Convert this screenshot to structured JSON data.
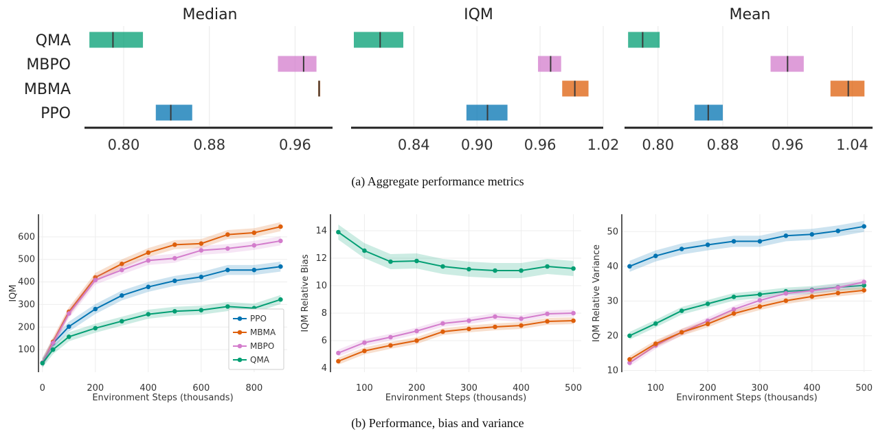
{
  "captions": {
    "a": "(a) Aggregate performance metrics",
    "b": "(b) Performance, bias and variance"
  },
  "methods": [
    "QMA",
    "MBPO",
    "MBMA",
    "PPO"
  ],
  "colors": {
    "PPO": "#0173b2",
    "MBMA": "#de5f0b",
    "MBPO": "#d37ccc",
    "QMA": "#029e73"
  },
  "chart_data": [
    {
      "type": "bar",
      "subtype": "interval",
      "title": "Median",
      "ticks": [
        0.8,
        0.88,
        0.96
      ],
      "tick_labels": [
        "0.80",
        "0.88",
        "0.96"
      ],
      "xlim": [
        0.766,
        0.995
      ],
      "intervals": [
        {
          "method": "QMA",
          "low": 0.768,
          "high": 0.818,
          "point": 0.79
        },
        {
          "method": "MBPO",
          "low": 0.944,
          "high": 0.98,
          "point": 0.968
        },
        {
          "method": "MBMA",
          "low": 0.9815,
          "high": 0.9835,
          "point": 0.9825
        },
        {
          "method": "PPO",
          "low": 0.83,
          "high": 0.864,
          "point": 0.844
        }
      ]
    },
    {
      "type": "bar",
      "subtype": "interval",
      "title": "IQM",
      "ticks": [
        0.84,
        0.9,
        0.96,
        1.02
      ],
      "tick_labels": [
        "0.84",
        "0.90",
        "0.96",
        "1.02"
      ],
      "xlim": [
        0.783,
        1.02
      ],
      "intervals": [
        {
          "method": "QMA",
          "low": 0.783,
          "high": 0.83,
          "point": 0.808
        },
        {
          "method": "MBPO",
          "low": 0.958,
          "high": 0.98,
          "point": 0.97
        },
        {
          "method": "MBMA",
          "low": 0.981,
          "high": 1.006,
          "point": 0.993
        },
        {
          "method": "PPO",
          "low": 0.89,
          "high": 0.929,
          "point": 0.91
        }
      ]
    },
    {
      "type": "bar",
      "subtype": "interval",
      "title": "Mean",
      "ticks": [
        0.8,
        0.88,
        0.96,
        1.04
      ],
      "tick_labels": [
        "0.80",
        "0.88",
        "0.96",
        "1.04"
      ],
      "xlim": [
        0.762,
        1.065
      ],
      "intervals": [
        {
          "method": "QMA",
          "low": 0.763,
          "high": 0.802,
          "point": 0.781
        },
        {
          "method": "MBPO",
          "low": 0.939,
          "high": 0.98,
          "point": 0.96
        },
        {
          "method": "MBMA",
          "low": 1.013,
          "high": 1.055,
          "point": 1.035
        },
        {
          "method": "PPO",
          "low": 0.845,
          "high": 0.88,
          "point": 0.862
        }
      ]
    },
    {
      "type": "line",
      "xlabel": "Environment Steps (thousands)",
      "ylabel": "IQM",
      "xlim": [
        -15,
        925
      ],
      "ylim": [
        0,
        700
      ],
      "xticks": [
        0,
        200,
        400,
        600,
        800
      ],
      "yticks": [
        100,
        200,
        300,
        400,
        500,
        600
      ],
      "legend": "center-right",
      "series": [
        {
          "name": "PPO",
          "x": [
            0,
            40,
            100,
            200,
            300,
            400,
            500,
            600,
            700,
            800,
            900
          ],
          "y": [
            42,
            128,
            202,
            280,
            340,
            378,
            405,
            422,
            453,
            453,
            468
          ],
          "band": 22
        },
        {
          "name": "MBMA",
          "x": [
            0,
            40,
            100,
            200,
            300,
            400,
            500,
            600,
            700,
            800,
            900
          ],
          "y": [
            42,
            135,
            268,
            420,
            480,
            530,
            565,
            570,
            610,
            618,
            645
          ],
          "band": 20
        },
        {
          "name": "MBPO",
          "x": [
            0,
            40,
            100,
            200,
            300,
            400,
            500,
            600,
            700,
            800,
            900
          ],
          "y": [
            42,
            130,
            260,
            408,
            453,
            495,
            505,
            540,
            548,
            562,
            582
          ],
          "band": 20
        },
        {
          "name": "QMA",
          "x": [
            0,
            40,
            100,
            200,
            300,
            400,
            500,
            600,
            700,
            800,
            900
          ],
          "y": [
            40,
            100,
            157,
            195,
            226,
            257,
            270,
            275,
            291,
            284,
            322
          ],
          "band": 20
        }
      ]
    },
    {
      "type": "line",
      "xlabel": "Environment Steps (thousands)",
      "ylabel": "IQM Relative Bias",
      "xlim": [
        35,
        515
      ],
      "ylim": [
        3.7,
        15.2
      ],
      "xticks": [
        100,
        200,
        300,
        400,
        500
      ],
      "yticks": [
        4,
        6,
        8,
        10,
        12,
        14
      ],
      "series": [
        {
          "name": "QMA",
          "x": [
            50,
            100,
            150,
            200,
            250,
            300,
            350,
            400,
            450,
            500
          ],
          "y": [
            13.9,
            12.55,
            11.75,
            11.8,
            11.4,
            11.2,
            11.1,
            11.1,
            11.4,
            11.25
          ],
          "band": 0.55
        },
        {
          "name": "MBPO",
          "x": [
            50,
            100,
            150,
            200,
            250,
            300,
            350,
            400,
            450,
            500
          ],
          "y": [
            5.1,
            5.85,
            6.25,
            6.7,
            7.25,
            7.45,
            7.75,
            7.6,
            7.95,
            8.0
          ],
          "band": 0.25
        },
        {
          "name": "MBMA",
          "x": [
            50,
            100,
            150,
            200,
            250,
            300,
            350,
            400,
            450,
            500
          ],
          "y": [
            4.5,
            5.25,
            5.65,
            6.0,
            6.65,
            6.85,
            7.0,
            7.1,
            7.4,
            7.45
          ],
          "band": 0.25
        }
      ]
    },
    {
      "type": "line",
      "xlabel": "Environment Steps (thousands)",
      "ylabel": "IQM Relative Variance",
      "xlim": [
        35,
        515
      ],
      "ylim": [
        9.5,
        55
      ],
      "xticks": [
        100,
        200,
        300,
        400,
        500
      ],
      "yticks": [
        10,
        20,
        30,
        40,
        50
      ],
      "series": [
        {
          "name": "PPO",
          "x": [
            50,
            100,
            150,
            200,
            250,
            300,
            350,
            400,
            450,
            500
          ],
          "y": [
            40.0,
            43.0,
            45.0,
            46.2,
            47.2,
            47.2,
            48.8,
            49.2,
            50.2,
            51.5
          ],
          "band": 1.6
        },
        {
          "name": "QMA",
          "x": [
            50,
            100,
            150,
            200,
            250,
            300,
            350,
            400,
            450,
            500
          ],
          "y": [
            20.0,
            23.5,
            27.2,
            29.2,
            31.2,
            31.9,
            32.8,
            33.2,
            34.0,
            34.5
          ],
          "band": 1.1
        },
        {
          "name": "MBPO",
          "x": [
            50,
            100,
            150,
            200,
            250,
            300,
            350,
            400,
            450,
            500
          ],
          "y": [
            12.2,
            17.2,
            21.0,
            24.3,
            27.6,
            30.2,
            32.2,
            33.0,
            33.9,
            35.5
          ],
          "band": 1.0
        },
        {
          "name": "MBMA",
          "x": [
            50,
            100,
            150,
            200,
            250,
            300,
            350,
            400,
            450,
            500
          ],
          "y": [
            13.2,
            17.7,
            21.0,
            23.4,
            26.4,
            28.4,
            30.1,
            31.3,
            32.3,
            33.1
          ],
          "band": 1.0
        }
      ]
    }
  ]
}
